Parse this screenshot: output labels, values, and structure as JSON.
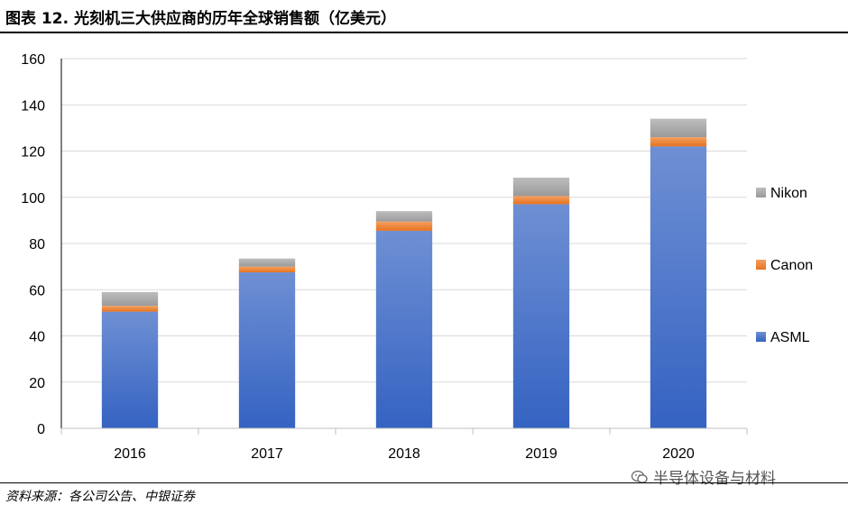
{
  "header": {
    "title": "图表 12. 光刻机三大供应商的历年全球销售额（亿美元）"
  },
  "footer": {
    "source": "资料来源：各公司公告、中银证券",
    "watermark": "半导体设备与材料"
  },
  "chart_data": {
    "type": "bar",
    "stacked": true,
    "categories": [
      "2016",
      "2017",
      "2018",
      "2019",
      "2020"
    ],
    "series": [
      {
        "name": "ASML",
        "color": "#4472C4",
        "values": [
          50.5,
          67.5,
          85.5,
          97,
          122
        ]
      },
      {
        "name": "Canon",
        "color": "#ED7D31",
        "values": [
          2.5,
          2.5,
          4,
          3.5,
          4
        ]
      },
      {
        "name": "Nikon",
        "color": "#A5A5A5",
        "values": [
          6,
          3.5,
          4.5,
          8,
          8
        ]
      }
    ],
    "ylim": [
      0,
      160
    ],
    "yticks": [
      0,
      20,
      40,
      60,
      80,
      100,
      120,
      140,
      160
    ],
    "grid": true,
    "legend_position": "right",
    "xlabel": "",
    "ylabel": ""
  }
}
